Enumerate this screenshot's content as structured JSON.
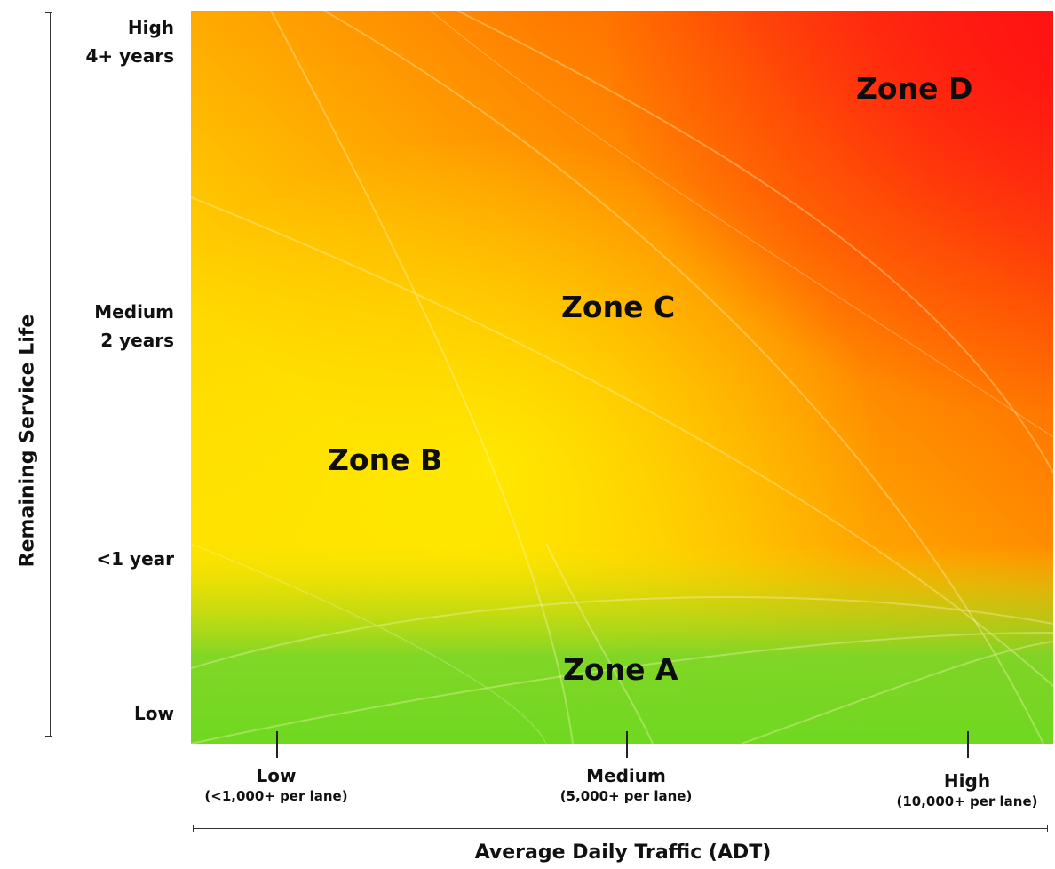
{
  "chart_data": {
    "type": "heatmap",
    "ylabel": "Remaining Service Life",
    "xlabel": "Average Daily Traffic (ADT)",
    "y_ticks": [
      {
        "lines": [
          "High",
          "4+ years"
        ]
      },
      {
        "lines": [
          "Medium",
          "2 years"
        ]
      },
      {
        "lines": [
          "<1 year"
        ]
      },
      {
        "lines": [
          "Low"
        ]
      }
    ],
    "x_ticks": [
      {
        "label": "Low",
        "sub": "(<1,000+ per lane)"
      },
      {
        "label": "Medium",
        "sub": "(5,000+ per lane)"
      },
      {
        "label": "High",
        "sub": "(10,000+ per lane)"
      }
    ],
    "zones": [
      {
        "label": "Zone A",
        "color": "#6fd820"
      },
      {
        "label": "Zone B",
        "color": "#ffe600"
      },
      {
        "label": "Zone C",
        "color": "#ff9a00"
      },
      {
        "label": "Zone D",
        "color": "#ff1a1a"
      }
    ],
    "grid": false,
    "legend": "none"
  }
}
